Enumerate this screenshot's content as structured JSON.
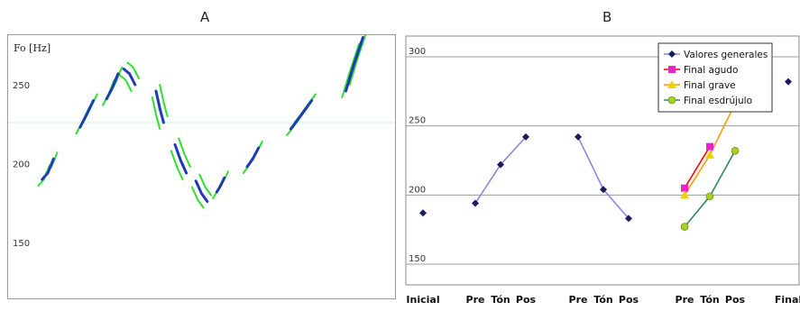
{
  "panels": {
    "a_label": "A",
    "b_label": "B"
  },
  "chart_data": [
    {
      "type": "line",
      "panel": "A",
      "ylabel": "Fo [Hz]",
      "ylim": [
        118,
        278
      ],
      "yticks": [
        150,
        200,
        250
      ],
      "xlim": [
        0,
        100
      ],
      "reference_line": 226,
      "colors": {
        "main": "#1f3ab8",
        "band": "#2ee02e",
        "reference": "#c6f3da"
      },
      "segments": [
        {
          "x": [
            8.0,
            9.5,
            11.0
          ],
          "y": [
            190,
            194,
            203
          ]
        },
        {
          "x": [
            18.0,
            19.5,
            21.5
          ],
          "y": [
            223,
            230,
            240
          ]
        },
        {
          "x": [
            25.0,
            26.5,
            28.0
          ],
          "y": [
            241,
            248,
            257
          ]
        },
        {
          "x": [
            29.5,
            31.0,
            32.5
          ],
          "y": [
            260,
            257,
            250
          ]
        },
        {
          "x": [
            38.0,
            39.0,
            40.0
          ],
          "y": [
            246,
            235,
            226
          ]
        },
        {
          "x": [
            43.0,
            44.5,
            46.0
          ],
          "y": [
            212,
            202,
            194
          ]
        },
        {
          "x": [
            48.5,
            50.0,
            51.5
          ],
          "y": [
            189,
            181,
            176
          ]
        },
        {
          "x": [
            54.0,
            55.0,
            56.0
          ],
          "y": [
            182,
            186,
            191
          ]
        },
        {
          "x": [
            62.0,
            63.5,
            65.0
          ],
          "y": [
            198,
            203,
            210
          ]
        },
        {
          "x": [
            73.5,
            76.0,
            79.0
          ],
          "y": [
            222,
            230,
            240
          ]
        },
        {
          "x": [
            88.0,
            90.0,
            92.5
          ],
          "y": [
            246,
            262,
            280
          ]
        }
      ]
    },
    {
      "type": "line",
      "panel": "B",
      "ylim": [
        135,
        315
      ],
      "yticks": [
        150,
        200,
        250,
        300
      ],
      "categories": [
        "Inicial",
        "Pre",
        "Tón",
        "Pos",
        "Pre",
        "Tón",
        "Pos",
        "Pre",
        "Tón",
        "Pos",
        "Final"
      ],
      "series": [
        {
          "name": "Valores generales",
          "color": "#8888dd",
          "marker_color": "#1a1a5e",
          "marker": "diamond",
          "segments": [
            [
              [
                1,
                194
              ],
              [
                2,
                222
              ],
              [
                3,
                242
              ]
            ],
            [
              [
                4,
                242
              ],
              [
                5,
                204
              ],
              [
                6,
                183
              ]
            ]
          ],
          "points": [
            [
              0,
              187
            ],
            [
              1,
              194
            ],
            [
              2,
              222
            ],
            [
              3,
              242
            ],
            [
              4,
              242
            ],
            [
              5,
              204
            ],
            [
              6,
              183
            ],
            [
              10,
              282
            ]
          ]
        },
        {
          "name": "Final agudo",
          "color": "#ff0000",
          "marker_color": "#ee22cc",
          "marker": "square",
          "segments": [
            [
              [
                7,
                205
              ],
              [
                8,
                235
              ]
            ]
          ],
          "points": [
            [
              7,
              205
            ],
            [
              8,
              235
            ]
          ]
        },
        {
          "name": "Final grave",
          "color": "#ff9900",
          "marker_color": "#f0d000",
          "marker": "triangle",
          "segments": [
            [
              [
                7,
                200
              ],
              [
                8,
                229
              ],
              [
                9,
                266
              ]
            ]
          ],
          "points": [
            [
              7,
              200
            ],
            [
              8,
              229
            ],
            [
              9,
              266
            ]
          ]
        },
        {
          "name": "Final esdrújulo",
          "color": "#2e8b57",
          "marker_color": "#a8d020",
          "marker": "circle",
          "segments": [
            [
              [
                7,
                177
              ],
              [
                8,
                199
              ],
              [
                9,
                232
              ]
            ]
          ],
          "points": [
            [
              7,
              177
            ],
            [
              8,
              199
            ],
            [
              9,
              232
            ]
          ]
        }
      ],
      "legend": {
        "placement": "top-right"
      },
      "grid": true
    }
  ]
}
